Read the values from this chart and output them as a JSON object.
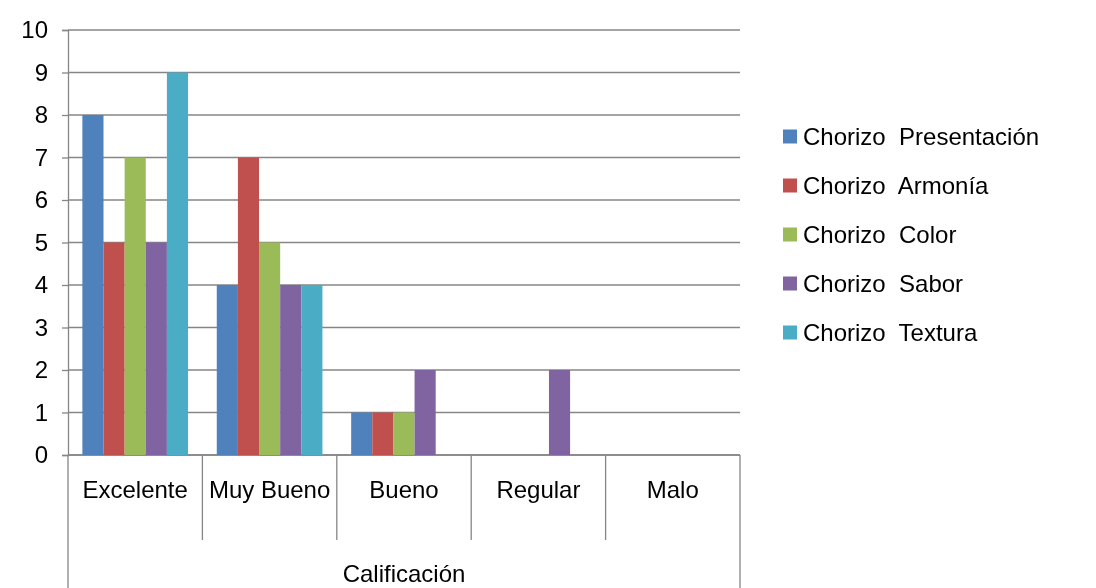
{
  "chart_data": {
    "type": "bar",
    "xlabel": "Calificación",
    "categories": [
      "Excelente",
      "Muy Bueno",
      "Bueno",
      "Regular",
      "Malo"
    ],
    "series": [
      {
        "name": "Chorizo  Presentación",
        "color": "#4f81bd",
        "values": [
          8,
          4,
          1,
          0,
          0
        ]
      },
      {
        "name": "Chorizo  Armonía",
        "color": "#c0504d",
        "values": [
          5,
          7,
          1,
          0,
          0
        ]
      },
      {
        "name": "Chorizo  Color",
        "color": "#9bbb59",
        "values": [
          7,
          5,
          1,
          0,
          0
        ]
      },
      {
        "name": "Chorizo  Sabor",
        "color": "#8064a2",
        "values": [
          5,
          4,
          2,
          2,
          0
        ]
      },
      {
        "name": "Chorizo  Textura",
        "color": "#4bacc6",
        "values": [
          9,
          4,
          0,
          0,
          0
        ]
      }
    ],
    "ylim": [
      0,
      10
    ],
    "yticks": [
      0,
      1,
      2,
      3,
      4,
      5,
      6,
      7,
      8,
      9,
      10
    ],
    "grid": "y",
    "legend": "right"
  }
}
